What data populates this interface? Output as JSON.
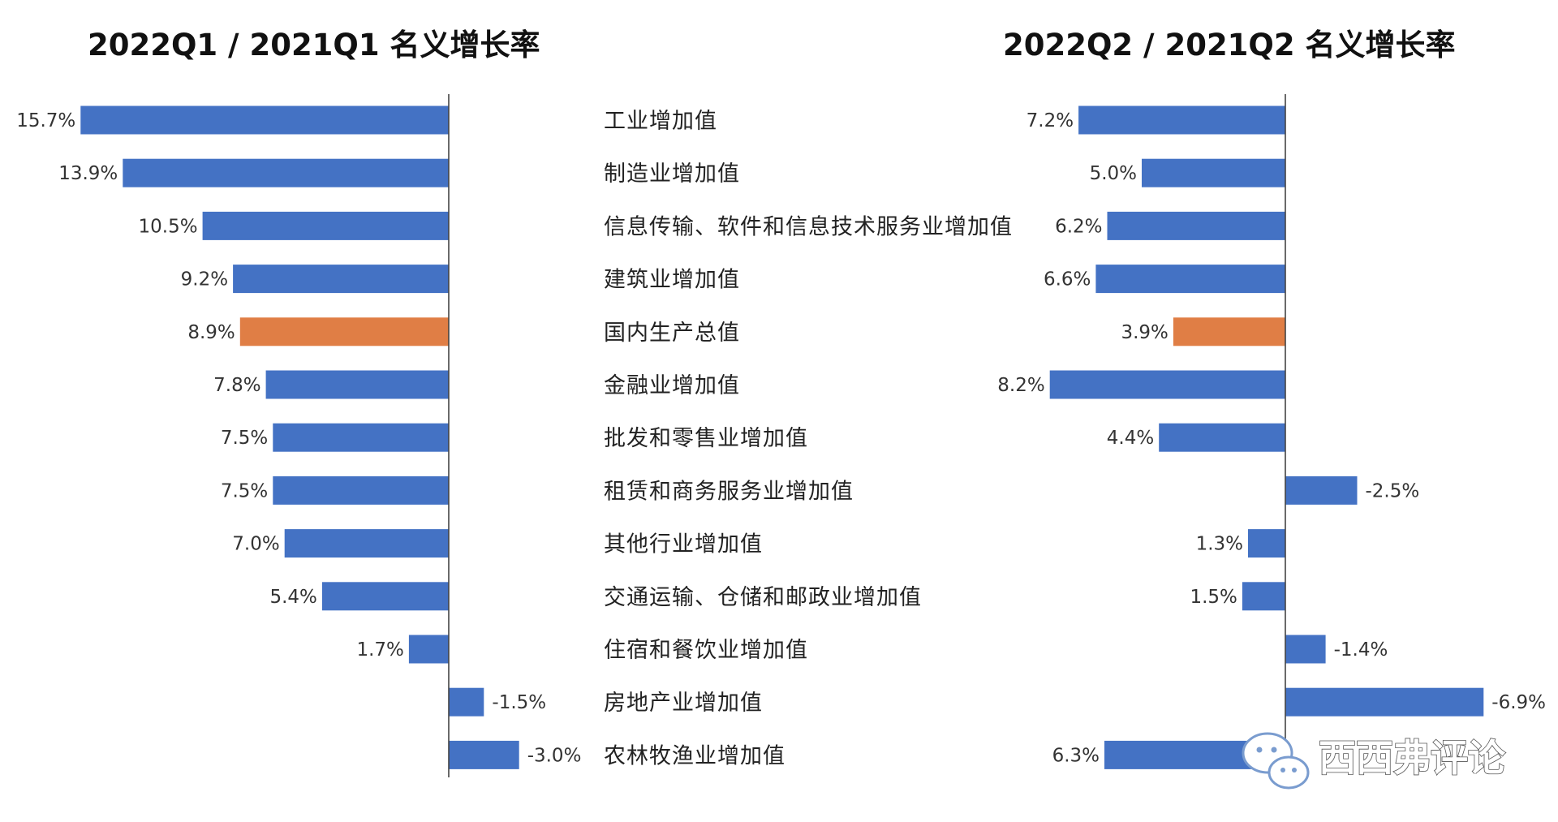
{
  "chart_data": {
    "type": "bar",
    "orientation": "horizontal",
    "categories": [
      "工业增加值",
      "制造业增加值",
      "信息传输、软件和信息技术服务业增加值",
      "建筑业增加值",
      "国内生产总值",
      "金融业增加值",
      "批发和零售业增加值",
      "租赁和商务服务业增加值",
      "其他行业增加值",
      "交通运输、仓储和邮政业增加值",
      "住宿和餐饮业增加值",
      "房地产业增加值",
      "农林牧渔业增加值"
    ],
    "highlight_category_index": 4,
    "colors": {
      "bar": "#4472c4",
      "highlight": "#e07e45",
      "axis": "#444444"
    },
    "panels": [
      {
        "title": "2022Q1 / 2021Q1 名义增长率",
        "values": [
          15.7,
          13.9,
          10.5,
          9.2,
          8.9,
          7.8,
          7.5,
          7.5,
          7.0,
          5.4,
          1.7,
          -1.5,
          -3.0
        ],
        "labels": [
          "15.7%",
          "13.9%",
          "10.5%",
          "9.2%",
          "8.9%",
          "7.8%",
          "7.5%",
          "7.5%",
          "7.0%",
          "5.4%",
          "1.7%",
          "-1.5%",
          "-3.0%"
        ]
      },
      {
        "title": "2022Q2 / 2021Q2 名义增长率",
        "values": [
          7.2,
          5.0,
          6.2,
          6.6,
          3.9,
          8.2,
          4.4,
          -2.5,
          1.3,
          1.5,
          -1.4,
          -6.9,
          6.3
        ],
        "labels": [
          "7.2%",
          "5.0%",
          "6.2%",
          "6.6%",
          "3.9%",
          "8.2%",
          "4.4%",
          "-2.5%",
          "1.3%",
          "1.5%",
          "-1.4%",
          "-6.9%",
          "6.3%"
        ]
      }
    ],
    "axis_direction": "positive values extend left of the vertical zero line",
    "grid": false,
    "legend": "none"
  },
  "watermark": {
    "text": "西西弗评论",
    "icon": "wechat-icon"
  }
}
